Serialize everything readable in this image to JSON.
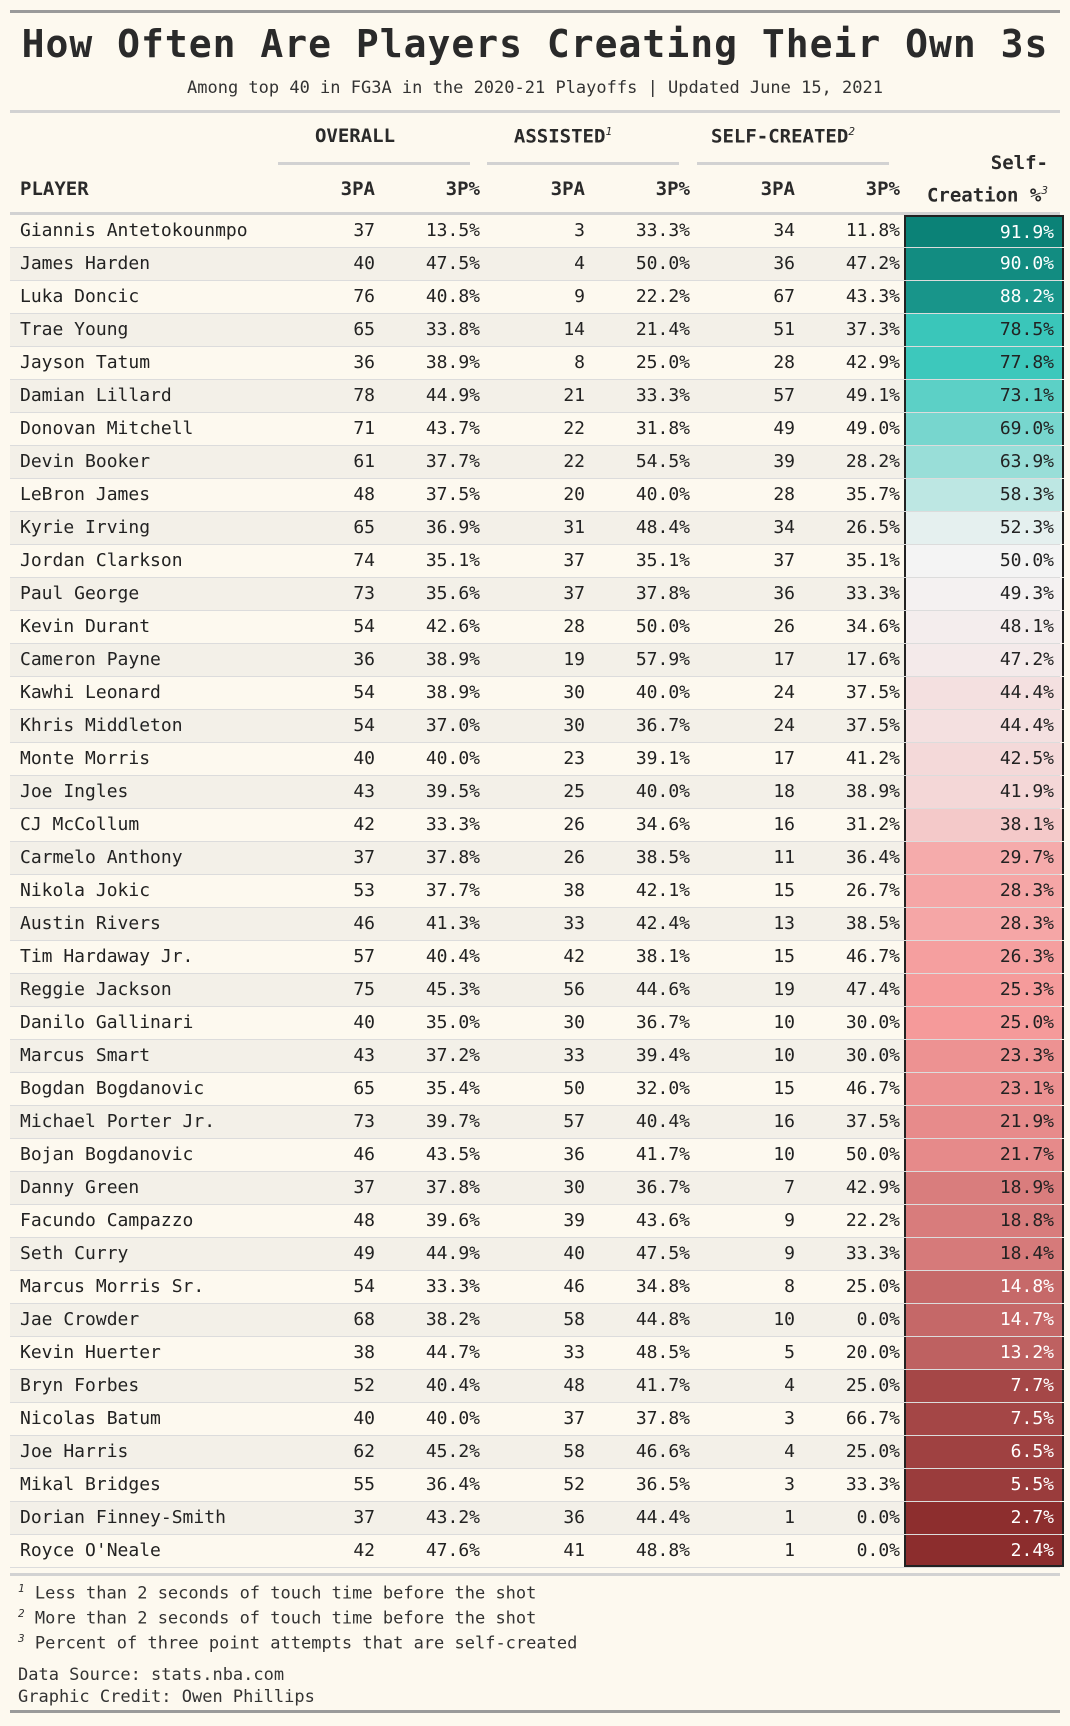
{
  "title": "How Often Are Players Creating Their Own 3s",
  "subtitle": "Among top 40 in FG3A in the 2020-21 Playoffs | Updated June 15, 2021",
  "groups": {
    "overall": "OVERALL",
    "assisted": "ASSISTED",
    "assisted_note": "1",
    "self_created": "SELF-CREATED",
    "self_created_note": "2"
  },
  "columns": {
    "player": "PLAYER",
    "pa": "3PA",
    "pct": "3P%",
    "self_creation_line1": "Self-",
    "self_creation_line2": "Creation %",
    "self_creation_note": "3"
  },
  "chart_data": {
    "type": "table",
    "title": "How Often Are Players Creating Their Own 3s",
    "columns": [
      "PLAYER",
      "OVERALL 3PA",
      "OVERALL 3P%",
      "ASSISTED 3PA",
      "ASSISTED 3P%",
      "SELF-CREATED 3PA",
      "SELF-CREATED 3P%",
      "Self-Creation %"
    ],
    "rows": [
      [
        "Giannis Antetokounmpo",
        "37",
        "13.5%",
        "3",
        "33.3%",
        "34",
        "11.8%",
        "91.9%"
      ],
      [
        "James Harden",
        "40",
        "47.5%",
        "4",
        "50.0%",
        "36",
        "47.2%",
        "90.0%"
      ],
      [
        "Luka Doncic",
        "76",
        "40.8%",
        "9",
        "22.2%",
        "67",
        "43.3%",
        "88.2%"
      ],
      [
        "Trae Young",
        "65",
        "33.8%",
        "14",
        "21.4%",
        "51",
        "37.3%",
        "78.5%"
      ],
      [
        "Jayson Tatum",
        "36",
        "38.9%",
        "8",
        "25.0%",
        "28",
        "42.9%",
        "77.8%"
      ],
      [
        "Damian Lillard",
        "78",
        "44.9%",
        "21",
        "33.3%",
        "57",
        "49.1%",
        "73.1%"
      ],
      [
        "Donovan Mitchell",
        "71",
        "43.7%",
        "22",
        "31.8%",
        "49",
        "49.0%",
        "69.0%"
      ],
      [
        "Devin Booker",
        "61",
        "37.7%",
        "22",
        "54.5%",
        "39",
        "28.2%",
        "63.9%"
      ],
      [
        "LeBron James",
        "48",
        "37.5%",
        "20",
        "40.0%",
        "28",
        "35.7%",
        "58.3%"
      ],
      [
        "Kyrie Irving",
        "65",
        "36.9%",
        "31",
        "48.4%",
        "34",
        "26.5%",
        "52.3%"
      ],
      [
        "Jordan Clarkson",
        "74",
        "35.1%",
        "37",
        "35.1%",
        "37",
        "35.1%",
        "50.0%"
      ],
      [
        "Paul George",
        "73",
        "35.6%",
        "37",
        "37.8%",
        "36",
        "33.3%",
        "49.3%"
      ],
      [
        "Kevin Durant",
        "54",
        "42.6%",
        "28",
        "50.0%",
        "26",
        "34.6%",
        "48.1%"
      ],
      [
        "Cameron Payne",
        "36",
        "38.9%",
        "19",
        "57.9%",
        "17",
        "17.6%",
        "47.2%"
      ],
      [
        "Kawhi Leonard",
        "54",
        "38.9%",
        "30",
        "40.0%",
        "24",
        "37.5%",
        "44.4%"
      ],
      [
        "Khris Middleton",
        "54",
        "37.0%",
        "30",
        "36.7%",
        "24",
        "37.5%",
        "44.4%"
      ],
      [
        "Monte Morris",
        "40",
        "40.0%",
        "23",
        "39.1%",
        "17",
        "41.2%",
        "42.5%"
      ],
      [
        "Joe Ingles",
        "43",
        "39.5%",
        "25",
        "40.0%",
        "18",
        "38.9%",
        "41.9%"
      ],
      [
        "CJ McCollum",
        "42",
        "33.3%",
        "26",
        "34.6%",
        "16",
        "31.2%",
        "38.1%"
      ],
      [
        "Carmelo Anthony",
        "37",
        "37.8%",
        "26",
        "38.5%",
        "11",
        "36.4%",
        "29.7%"
      ],
      [
        "Nikola Jokic",
        "53",
        "37.7%",
        "38",
        "42.1%",
        "15",
        "26.7%",
        "28.3%"
      ],
      [
        "Austin Rivers",
        "46",
        "41.3%",
        "33",
        "42.4%",
        "13",
        "38.5%",
        "28.3%"
      ],
      [
        "Tim Hardaway Jr.",
        "57",
        "40.4%",
        "42",
        "38.1%",
        "15",
        "46.7%",
        "26.3%"
      ],
      [
        "Reggie Jackson",
        "75",
        "45.3%",
        "56",
        "44.6%",
        "19",
        "47.4%",
        "25.3%"
      ],
      [
        "Danilo Gallinari",
        "40",
        "35.0%",
        "30",
        "36.7%",
        "10",
        "30.0%",
        "25.0%"
      ],
      [
        "Marcus Smart",
        "43",
        "37.2%",
        "33",
        "39.4%",
        "10",
        "30.0%",
        "23.3%"
      ],
      [
        "Bogdan Bogdanovic",
        "65",
        "35.4%",
        "50",
        "32.0%",
        "15",
        "46.7%",
        "23.1%"
      ],
      [
        "Michael Porter Jr.",
        "73",
        "39.7%",
        "57",
        "40.4%",
        "16",
        "37.5%",
        "21.9%"
      ],
      [
        "Bojan Bogdanovic",
        "46",
        "43.5%",
        "36",
        "41.7%",
        "10",
        "50.0%",
        "21.7%"
      ],
      [
        "Danny Green",
        "37",
        "37.8%",
        "30",
        "36.7%",
        "7",
        "42.9%",
        "18.9%"
      ],
      [
        "Facundo Campazzo",
        "48",
        "39.6%",
        "39",
        "43.6%",
        "9",
        "22.2%",
        "18.8%"
      ],
      [
        "Seth Curry",
        "49",
        "44.9%",
        "40",
        "47.5%",
        "9",
        "33.3%",
        "18.4%"
      ],
      [
        "Marcus Morris Sr.",
        "54",
        "33.3%",
        "46",
        "34.8%",
        "8",
        "25.0%",
        "14.8%"
      ],
      [
        "Jae Crowder",
        "68",
        "38.2%",
        "58",
        "44.8%",
        "10",
        "0.0%",
        "14.7%"
      ],
      [
        "Kevin Huerter",
        "38",
        "44.7%",
        "33",
        "48.5%",
        "5",
        "20.0%",
        "13.2%"
      ],
      [
        "Bryn Forbes",
        "52",
        "40.4%",
        "48",
        "41.7%",
        "4",
        "25.0%",
        "7.7%"
      ],
      [
        "Nicolas Batum",
        "40",
        "40.0%",
        "37",
        "37.8%",
        "3",
        "66.7%",
        "7.5%"
      ],
      [
        "Joe Harris",
        "62",
        "45.2%",
        "58",
        "46.6%",
        "4",
        "25.0%",
        "6.5%"
      ],
      [
        "Mikal Bridges",
        "55",
        "36.4%",
        "52",
        "36.5%",
        "3",
        "33.3%",
        "5.5%"
      ],
      [
        "Dorian Finney-Smith",
        "37",
        "43.2%",
        "36",
        "44.4%",
        "1",
        "0.0%",
        "2.7%"
      ],
      [
        "Royce O'Neale",
        "42",
        "47.6%",
        "41",
        "48.8%",
        "1",
        "0.0%",
        "2.4%"
      ]
    ],
    "color_scale": {
      "high": "#0b8277",
      "mid_high": "#3cc8bc",
      "mid": "#f4f4f4",
      "mid_low": "#f59a9a",
      "low": "#8a2b2b"
    }
  },
  "footnotes": [
    {
      "mark": "1",
      "text": "Less than 2 seconds of touch time before the shot"
    },
    {
      "mark": "2",
      "text": "More than 2 seconds of touch time before the shot"
    },
    {
      "mark": "3",
      "text": "Percent of three point attempts that are self-created"
    }
  ],
  "source": "Data Source: stats.nba.com",
  "credit": "Graphic Credit: Owen Phillips"
}
